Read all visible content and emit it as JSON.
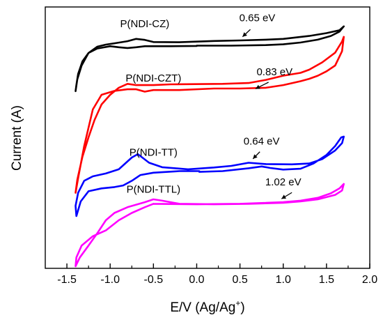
{
  "chart_data": {
    "type": "line",
    "title": "",
    "xlabel": "E/V (Ag/Ag",
    "xlabel_sup": "+",
    "xlabel_end": ")",
    "ylabel": "Current (A)",
    "xlim": [
      -1.75,
      2.0
    ],
    "ylim": [
      0,
      100
    ],
    "x_ticks": [
      -1.5,
      -1.0,
      -0.5,
      0.0,
      0.5,
      1.0,
      1.5,
      2.0
    ],
    "x_tick_labels": [
      "-1.5",
      "-1.0",
      "-0.5",
      "0.0",
      "0.5",
      "1.0",
      "1.5",
      "2.0"
    ],
    "grid": false,
    "legend": "none",
    "series": [
      {
        "name": "P(NDI-CZ)",
        "color": "#000000",
        "onset_label": "0.65 eV",
        "label_at": [
          -0.6,
          92.3
        ],
        "onset_label_at": [
          0.7,
          94.5
        ],
        "arrow_from": [
          0.62,
          91.4
        ],
        "arrow_to": [
          0.53,
          88.6
        ],
        "points": [
          [
            0.0,
            85.2
          ],
          [
            0.4,
            85.2
          ],
          [
            0.8,
            85.4
          ],
          [
            1.0,
            85.7
          ],
          [
            1.2,
            86.4
          ],
          [
            1.4,
            87.5
          ],
          [
            1.55,
            88.9
          ],
          [
            1.65,
            90.6
          ],
          [
            1.7,
            92.6
          ],
          [
            1.65,
            91.1
          ],
          [
            1.5,
            90.0
          ],
          [
            1.3,
            88.9
          ],
          [
            1.0,
            87.8
          ],
          [
            0.8,
            87.5
          ],
          [
            0.5,
            87.2
          ],
          [
            0.2,
            87.0
          ],
          [
            -0.2,
            86.5
          ],
          [
            -0.5,
            86.6
          ],
          [
            -0.6,
            87.4
          ],
          [
            -0.7,
            87.8
          ],
          [
            -0.8,
            86.9
          ],
          [
            -0.95,
            86.1
          ],
          [
            -1.05,
            85.6
          ],
          [
            -1.15,
            84.8
          ],
          [
            -1.25,
            82.4
          ],
          [
            -1.33,
            77.6
          ],
          [
            -1.38,
            72.3
          ],
          [
            -1.4,
            67.8
          ],
          [
            -1.39,
            70.2
          ],
          [
            -1.37,
            74.4
          ],
          [
            -1.32,
            79.2
          ],
          [
            -1.25,
            82.4
          ],
          [
            -1.15,
            84.1
          ],
          [
            -1.0,
            85.0
          ],
          [
            -0.9,
            84.6
          ],
          [
            -0.8,
            84.3
          ],
          [
            -0.7,
            84.6
          ],
          [
            -0.6,
            85.0
          ],
          [
            -0.3,
            85.0
          ],
          [
            0.0,
            85.1
          ]
        ]
      },
      {
        "name": "P(NDI-CZT)",
        "color": "#ff0000",
        "onset_label": "0.83 eV",
        "label_at": [
          -0.5,
          71.5
        ],
        "onset_label_at": [
          0.9,
          73.9
        ],
        "arrow_from": [
          0.83,
          71.2
        ],
        "arrow_to": [
          0.68,
          68.7
        ],
        "points": [
          [
            -0.3,
            70.4
          ],
          [
            0.3,
            70.6
          ],
          [
            0.6,
            70.9
          ],
          [
            0.8,
            72.1
          ],
          [
            1.0,
            73.7
          ],
          [
            1.2,
            74.8
          ],
          [
            1.3,
            76.0
          ],
          [
            1.45,
            78.8
          ],
          [
            1.6,
            82.5
          ],
          [
            1.68,
            86.8
          ],
          [
            1.7,
            88.6
          ],
          [
            1.68,
            83.1
          ],
          [
            1.6,
            77.6
          ],
          [
            1.5,
            75.4
          ],
          [
            1.4,
            73.7
          ],
          [
            1.3,
            72.5
          ],
          [
            1.2,
            71.6
          ],
          [
            1.0,
            70.1
          ],
          [
            0.8,
            69.1
          ],
          [
            0.5,
            68.8
          ],
          [
            0.2,
            68.8
          ],
          [
            -0.2,
            68.2
          ],
          [
            -0.5,
            68.2
          ],
          [
            -0.6,
            67.6
          ],
          [
            -0.7,
            68.5
          ],
          [
            -0.8,
            68.5
          ],
          [
            -0.95,
            67.9
          ],
          [
            -1.1,
            66.4
          ],
          [
            -1.2,
            60.8
          ],
          [
            -1.3,
            46.8
          ],
          [
            -1.37,
            34.5
          ],
          [
            -1.4,
            28.9
          ],
          [
            -1.38,
            33.9
          ],
          [
            -1.32,
            42.7
          ],
          [
            -1.25,
            50.1
          ],
          [
            -1.18,
            56.8
          ],
          [
            -1.1,
            62.7
          ],
          [
            -1.0,
            66.4
          ],
          [
            -0.9,
            69.1
          ],
          [
            -0.8,
            70.6
          ],
          [
            -0.7,
            70.1
          ],
          [
            -0.5,
            70.1
          ],
          [
            -0.3,
            70.4
          ]
        ]
      },
      {
        "name": "P(NDI-TT)",
        "color": "#0000ff",
        "onset_label": "0.64 eV",
        "label_at": [
          -0.5,
          43.1
        ],
        "onset_label_at": [
          0.75,
          47.3
        ],
        "arrow_from": [
          0.73,
          44.6
        ],
        "arrow_to": [
          0.65,
          41.9
        ],
        "points": [
          [
            0.03,
            36.9
          ],
          [
            0.3,
            37.2
          ],
          [
            0.6,
            38.3
          ],
          [
            0.75,
            39.0
          ],
          [
            0.85,
            38.4
          ],
          [
            1.0,
            37.8
          ],
          [
            1.2,
            38.1
          ],
          [
            1.35,
            40.1
          ],
          [
            1.5,
            43.4
          ],
          [
            1.6,
            46.8
          ],
          [
            1.67,
            50.1
          ],
          [
            1.7,
            50.4
          ],
          [
            1.68,
            47.9
          ],
          [
            1.6,
            45.1
          ],
          [
            1.45,
            41.8
          ],
          [
            1.3,
            40.1
          ],
          [
            1.1,
            39.8
          ],
          [
            0.8,
            39.9
          ],
          [
            0.6,
            40.4
          ],
          [
            0.4,
            39.2
          ],
          [
            0.2,
            38.6
          ],
          [
            -0.1,
            37.9
          ],
          [
            -0.4,
            38.7
          ],
          [
            -0.55,
            40.4
          ],
          [
            -0.68,
            43.7
          ],
          [
            -0.75,
            42.4
          ],
          [
            -0.9,
            37.9
          ],
          [
            -1.05,
            36.3
          ],
          [
            -1.2,
            35.2
          ],
          [
            -1.3,
            33.5
          ],
          [
            -1.37,
            28.9
          ],
          [
            -1.4,
            23.9
          ],
          [
            -1.39,
            20.0
          ],
          [
            -1.34,
            25.6
          ],
          [
            -1.25,
            29.5
          ],
          [
            -1.1,
            30.6
          ],
          [
            -0.95,
            31.1
          ],
          [
            -0.85,
            31.7
          ],
          [
            -0.75,
            33.5
          ],
          [
            -0.65,
            35.7
          ],
          [
            -0.5,
            36.6
          ],
          [
            -0.2,
            37.2
          ],
          [
            0.03,
            37.2
          ]
        ]
      },
      {
        "name": "P(NDI-TTL)",
        "color": "#ff00ff",
        "onset_label": "1.02 eV",
        "label_at": [
          -0.5,
          29.0
        ],
        "onset_label_at": [
          1.0,
          31.7
        ],
        "arrow_from": [
          1.1,
          29.0
        ],
        "arrow_to": [
          0.98,
          26.6
        ],
        "points": [
          [
            -0.5,
            24.7
          ],
          [
            0.0,
            24.5
          ],
          [
            0.5,
            24.7
          ],
          [
            1.0,
            25.3
          ],
          [
            1.2,
            25.9
          ],
          [
            1.4,
            27.0
          ],
          [
            1.55,
            28.7
          ],
          [
            1.65,
            30.6
          ],
          [
            1.7,
            32.3
          ],
          [
            1.68,
            29.8
          ],
          [
            1.6,
            28.1
          ],
          [
            1.4,
            26.4
          ],
          [
            1.2,
            25.6
          ],
          [
            1.0,
            25.1
          ],
          [
            0.6,
            24.7
          ],
          [
            0.2,
            24.5
          ],
          [
            -0.2,
            24.7
          ],
          [
            -0.4,
            25.9
          ],
          [
            -0.5,
            26.4
          ],
          [
            -0.6,
            25.3
          ],
          [
            -0.8,
            23.4
          ],
          [
            -0.95,
            21.2
          ],
          [
            -1.05,
            18.4
          ],
          [
            -1.15,
            13.4
          ],
          [
            -1.25,
            8.7
          ],
          [
            -1.35,
            4.2
          ],
          [
            -1.4,
            0.8
          ],
          [
            -1.39,
            4.2
          ],
          [
            -1.33,
            8.7
          ],
          [
            -1.2,
            12.3
          ],
          [
            -1.05,
            14.5
          ],
          [
            -0.9,
            18.4
          ],
          [
            -0.75,
            21.2
          ],
          [
            -0.6,
            23.4
          ],
          [
            -0.5,
            24.7
          ]
        ]
      }
    ]
  }
}
